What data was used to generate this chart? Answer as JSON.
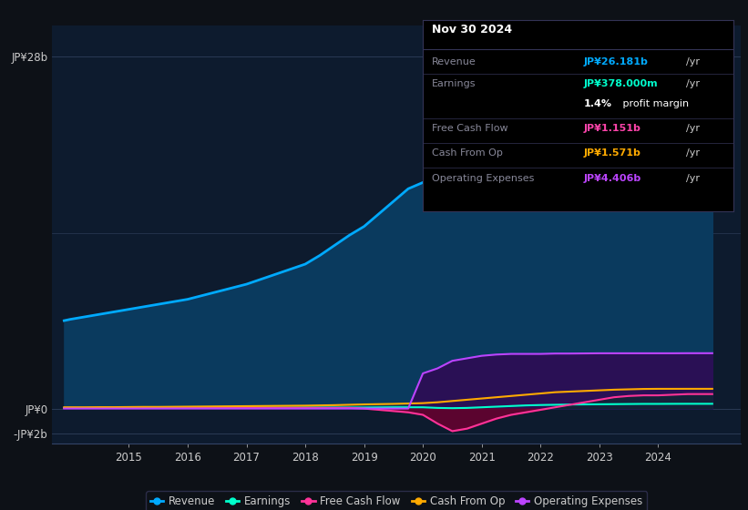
{
  "bg_color": "#0d1117",
  "plot_bg_color": "#0d1b2e",
  "title_date": "Nov 30 2024",
  "tooltip": {
    "Revenue": {
      "value": "JP¥26.181b",
      "color": "#00aaff"
    },
    "Earnings": {
      "value": "JP¥378.000m",
      "color": "#00ffcc"
    },
    "profit_margin": "1.4%",
    "Free Cash Flow": {
      "value": "JP¥1.151b",
      "color": "#ff44aa"
    },
    "Cash From Op": {
      "value": "JP¥1.571b",
      "color": "#ffaa00"
    },
    "Operating Expenses": {
      "value": "JP¥4.406b",
      "color": "#bb44ff"
    }
  },
  "years": [
    2013.9,
    2014.0,
    2014.25,
    2014.5,
    2014.75,
    2015.0,
    2015.25,
    2015.5,
    2015.75,
    2016.0,
    2016.25,
    2016.5,
    2016.75,
    2017.0,
    2017.25,
    2017.5,
    2017.75,
    2018.0,
    2018.25,
    2018.5,
    2018.75,
    2019.0,
    2019.25,
    2019.5,
    2019.75,
    2020.0,
    2020.25,
    2020.5,
    2020.75,
    2021.0,
    2021.25,
    2021.5,
    2021.75,
    2022.0,
    2022.25,
    2022.5,
    2022.75,
    2023.0,
    2023.25,
    2023.5,
    2023.75,
    2024.0,
    2024.25,
    2024.5,
    2024.75,
    2024.92
  ],
  "revenue": [
    7.0,
    7.1,
    7.3,
    7.5,
    7.7,
    7.9,
    8.1,
    8.3,
    8.5,
    8.7,
    9.0,
    9.3,
    9.6,
    9.9,
    10.3,
    10.7,
    11.1,
    11.5,
    12.2,
    13.0,
    13.8,
    14.5,
    15.5,
    16.5,
    17.5,
    18.0,
    18.5,
    18.8,
    19.5,
    20.5,
    21.0,
    21.5,
    22.0,
    22.5,
    23.0,
    23.8,
    24.2,
    24.5,
    25.0,
    25.5,
    25.8,
    26.0,
    26.1,
    26.2,
    26.18,
    26.181
  ],
  "earnings": [
    0.05,
    0.05,
    0.05,
    0.05,
    0.05,
    0.05,
    0.05,
    0.06,
    0.06,
    0.06,
    0.06,
    0.06,
    0.07,
    0.07,
    0.07,
    0.07,
    0.07,
    0.08,
    0.08,
    0.08,
    0.08,
    0.08,
    0.09,
    0.1,
    0.1,
    0.1,
    0.05,
    0.03,
    0.05,
    0.1,
    0.15,
    0.2,
    0.25,
    0.28,
    0.3,
    0.32,
    0.33,
    0.34,
    0.35,
    0.36,
    0.37,
    0.37,
    0.375,
    0.378,
    0.378,
    0.378
  ],
  "free_cash_flow": [
    0.05,
    0.05,
    0.05,
    0.05,
    0.05,
    0.05,
    0.05,
    0.05,
    0.05,
    0.05,
    0.05,
    0.05,
    0.05,
    0.05,
    0.05,
    0.05,
    0.05,
    0.05,
    0.05,
    0.05,
    0.05,
    0.0,
    -0.1,
    -0.2,
    -0.3,
    -0.5,
    -1.2,
    -1.8,
    -1.6,
    -1.2,
    -0.8,
    -0.5,
    -0.3,
    -0.1,
    0.1,
    0.3,
    0.5,
    0.7,
    0.9,
    1.0,
    1.05,
    1.05,
    1.1,
    1.15,
    1.151,
    1.151
  ],
  "cash_from_op": [
    0.1,
    0.1,
    0.1,
    0.11,
    0.11,
    0.12,
    0.13,
    0.13,
    0.14,
    0.15,
    0.16,
    0.17,
    0.18,
    0.19,
    0.2,
    0.21,
    0.22,
    0.23,
    0.25,
    0.27,
    0.3,
    0.33,
    0.35,
    0.37,
    0.4,
    0.43,
    0.5,
    0.6,
    0.7,
    0.8,
    0.9,
    1.0,
    1.1,
    1.2,
    1.3,
    1.35,
    1.4,
    1.45,
    1.5,
    1.53,
    1.56,
    1.57,
    1.57,
    1.571,
    1.571,
    1.571
  ],
  "operating_expenses": [
    0.0,
    0.0,
    0.0,
    0.0,
    0.0,
    0.0,
    0.0,
    0.0,
    0.0,
    0.0,
    0.0,
    0.0,
    0.0,
    0.0,
    0.0,
    0.0,
    0.0,
    0.0,
    0.0,
    0.0,
    0.0,
    0.0,
    0.0,
    0.0,
    0.0,
    2.8,
    3.2,
    3.8,
    4.0,
    4.2,
    4.3,
    4.35,
    4.35,
    4.35,
    4.38,
    4.38,
    4.39,
    4.4,
    4.4,
    4.4,
    4.4,
    4.4,
    4.4,
    4.406,
    4.406,
    4.406
  ],
  "colors": {
    "revenue": "#00aaff",
    "earnings": "#00ffcc",
    "free_cash_flow": "#ff3399",
    "cash_from_op": "#ffaa00",
    "operating_expenses": "#bb44ff",
    "revenue_fill": "#0a3a5e",
    "operating_expenses_fill": "#2a1055"
  },
  "yticks": [
    -2,
    0,
    28
  ],
  "ytick_labels": [
    "-JP¥2b",
    "JP¥0",
    "JP¥28b"
  ],
  "xticks": [
    2015,
    2016,
    2017,
    2018,
    2019,
    2020,
    2021,
    2022,
    2023,
    2024
  ],
  "ylim": [
    -2.8,
    30.5
  ],
  "xlim": [
    2013.7,
    2025.4
  ],
  "legend": [
    {
      "label": "Revenue",
      "color": "#00aaff"
    },
    {
      "label": "Earnings",
      "color": "#00ffcc"
    },
    {
      "label": "Free Cash Flow",
      "color": "#ff3399"
    },
    {
      "label": "Cash From Op",
      "color": "#ffaa00"
    },
    {
      "label": "Operating Expenses",
      "color": "#bb44ff"
    }
  ]
}
